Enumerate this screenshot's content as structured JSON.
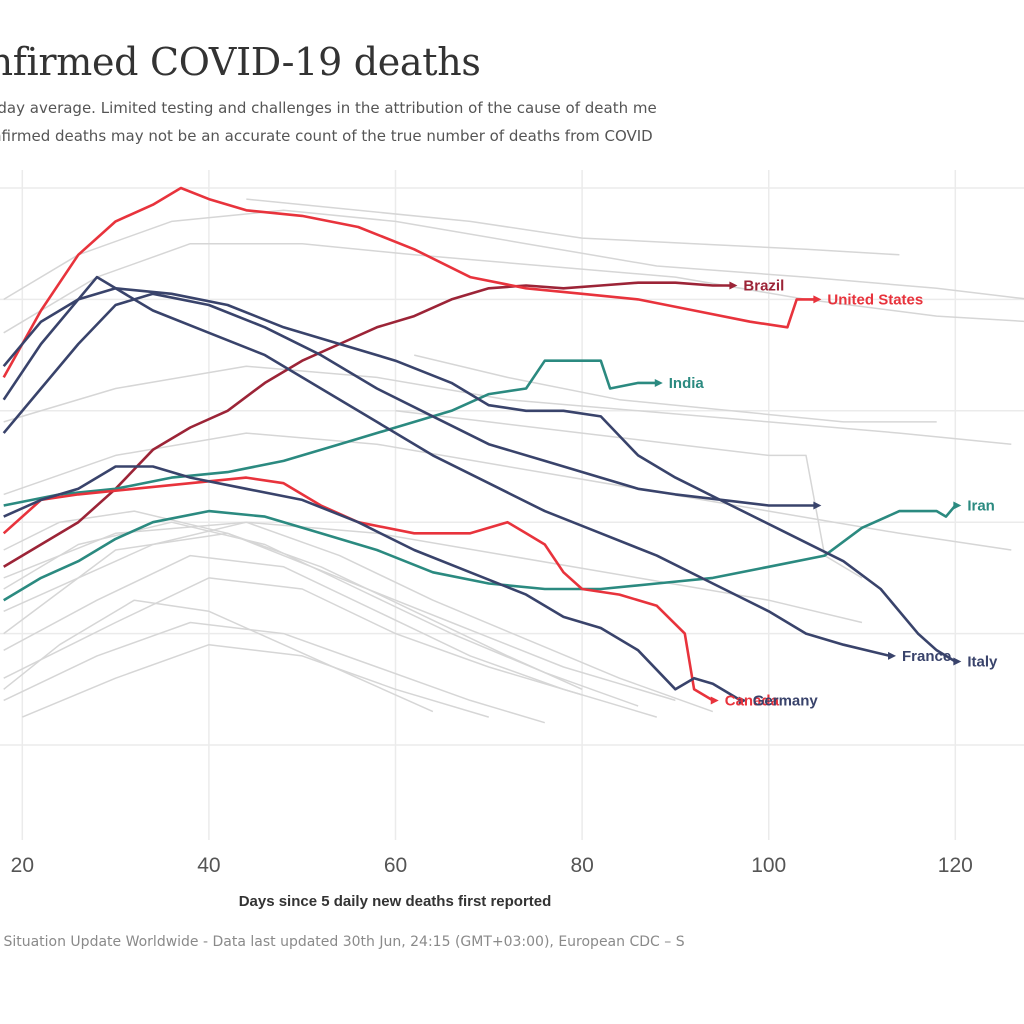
{
  "header": {
    "title": "onfirmed COVID-19 deaths",
    "subtitle_line1": "-day average. Limited testing and challenges in the attribution of the cause of death me",
    "subtitle_line2": "nfirmed deaths may not be an accurate count of the true number of deaths from COVID"
  },
  "footer": {
    "source": "– Situation Update Worldwide - Data last updated 30th Jun, 24:15 (GMT+03:00), European CDC – S"
  },
  "colors": {
    "red": "#e8333c",
    "darkred": "#9c2437",
    "navy": "#39436b",
    "teal": "#2b8a80",
    "background_line": "#d6d6d6",
    "grid": "#ebebeb"
  },
  "chart_data": {
    "type": "line",
    "title": "onfirmed COVID-19 deaths",
    "xlabel": "Days since 5 daily new deaths first reported",
    "ylabel": "",
    "xlim": [
      18,
      129
    ],
    "ylim": [
      0,
      100
    ],
    "x_ticks": [
      "20",
      "40",
      "60",
      "80",
      "100",
      "120"
    ],
    "grid": true,
    "legend": "direct labels at line ends",
    "series": [
      {
        "name": "Brazil",
        "color": "#9c2437",
        "points": [
          [
            18,
            32
          ],
          [
            22,
            36
          ],
          [
            26,
            40
          ],
          [
            30,
            46
          ],
          [
            34,
            53
          ],
          [
            38,
            57
          ],
          [
            42,
            60
          ],
          [
            46,
            65
          ],
          [
            50,
            69
          ],
          [
            54,
            72
          ],
          [
            58,
            75
          ],
          [
            62,
            77
          ],
          [
            66,
            80
          ],
          [
            70,
            82
          ],
          [
            74,
            82.5
          ],
          [
            78,
            82
          ],
          [
            82,
            82.5
          ],
          [
            86,
            83
          ],
          [
            90,
            83
          ],
          [
            94,
            82.5
          ],
          [
            96,
            82.5
          ]
        ]
      },
      {
        "name": "United States",
        "color": "#e8333c",
        "points": [
          [
            18,
            66
          ],
          [
            22,
            78
          ],
          [
            26,
            88
          ],
          [
            30,
            94
          ],
          [
            34,
            97
          ],
          [
            37,
            100
          ],
          [
            40,
            98
          ],
          [
            44,
            96
          ],
          [
            50,
            95
          ],
          [
            56,
            93
          ],
          [
            62,
            89
          ],
          [
            68,
            84
          ],
          [
            74,
            82
          ],
          [
            80,
            81
          ],
          [
            86,
            80
          ],
          [
            92,
            78
          ],
          [
            98,
            76
          ],
          [
            102,
            75
          ],
          [
            103,
            80
          ],
          [
            105,
            80
          ]
        ]
      },
      {
        "name": "India",
        "color": "#2b8a80",
        "points": [
          [
            18,
            43
          ],
          [
            24,
            45
          ],
          [
            30,
            46
          ],
          [
            36,
            48
          ],
          [
            42,
            49
          ],
          [
            48,
            51
          ],
          [
            54,
            54
          ],
          [
            60,
            57
          ],
          [
            66,
            60
          ],
          [
            70,
            63
          ],
          [
            74,
            64
          ],
          [
            76,
            69
          ],
          [
            78,
            69
          ],
          [
            80,
            69
          ],
          [
            82,
            69
          ],
          [
            83,
            64
          ],
          [
            86,
            65
          ],
          [
            88,
            65
          ]
        ]
      },
      {
        "name": "Iran",
        "color": "#2b8a80",
        "points": [
          [
            18,
            26
          ],
          [
            22,
            30
          ],
          [
            26,
            33
          ],
          [
            30,
            37
          ],
          [
            34,
            40
          ],
          [
            40,
            42
          ],
          [
            46,
            41
          ],
          [
            52,
            38
          ],
          [
            58,
            35
          ],
          [
            64,
            31
          ],
          [
            70,
            29
          ],
          [
            76,
            28
          ],
          [
            82,
            28
          ],
          [
            88,
            29
          ],
          [
            94,
            30
          ],
          [
            100,
            32
          ],
          [
            106,
            34
          ],
          [
            110,
            39
          ],
          [
            114,
            42
          ],
          [
            118,
            42
          ],
          [
            119,
            41
          ],
          [
            120,
            43
          ]
        ]
      },
      {
        "name": "Canada",
        "color": "#e8333c",
        "points": [
          [
            18,
            38
          ],
          [
            22,
            44
          ],
          [
            26,
            45
          ],
          [
            32,
            46
          ],
          [
            38,
            47
          ],
          [
            44,
            48
          ],
          [
            48,
            47
          ],
          [
            52,
            43
          ],
          [
            56,
            40
          ],
          [
            62,
            38
          ],
          [
            68,
            38
          ],
          [
            72,
            40
          ],
          [
            74,
            38
          ],
          [
            76,
            36
          ],
          [
            78,
            31
          ],
          [
            80,
            28
          ],
          [
            84,
            27
          ],
          [
            88,
            25
          ],
          [
            91,
            20
          ],
          [
            92,
            10
          ],
          [
            94,
            8
          ]
        ]
      },
      {
        "name": "Germany",
        "color": "#39436b",
        "points": [
          [
            18,
            41
          ],
          [
            22,
            44
          ],
          [
            26,
            46
          ],
          [
            30,
            50
          ],
          [
            34,
            50
          ],
          [
            38,
            48
          ],
          [
            44,
            46
          ],
          [
            50,
            44
          ],
          [
            56,
            40
          ],
          [
            62,
            35
          ],
          [
            68,
            31
          ],
          [
            74,
            27
          ],
          [
            78,
            23
          ],
          [
            82,
            21
          ],
          [
            86,
            17
          ],
          [
            90,
            10
          ],
          [
            92,
            12
          ],
          [
            94,
            11
          ],
          [
            97,
            8
          ]
        ]
      },
      {
        "name": "France",
        "color": "#39436b",
        "points": [
          [
            18,
            62
          ],
          [
            22,
            72
          ],
          [
            26,
            80
          ],
          [
            28,
            84
          ],
          [
            30,
            82
          ],
          [
            34,
            78
          ],
          [
            40,
            74
          ],
          [
            46,
            70
          ],
          [
            52,
            64
          ],
          [
            58,
            58
          ],
          [
            64,
            52
          ],
          [
            70,
            47
          ],
          [
            76,
            42
          ],
          [
            82,
            38
          ],
          [
            88,
            34
          ],
          [
            94,
            29
          ],
          [
            100,
            24
          ],
          [
            104,
            20
          ],
          [
            108,
            18
          ],
          [
            113,
            16
          ]
        ]
      },
      {
        "name": "Italy",
        "color": "#39436b",
        "points": [
          [
            18,
            68
          ],
          [
            22,
            76
          ],
          [
            26,
            80
          ],
          [
            30,
            82
          ],
          [
            36,
            81
          ],
          [
            42,
            79
          ],
          [
            48,
            75
          ],
          [
            54,
            72
          ],
          [
            60,
            69
          ],
          [
            66,
            65
          ],
          [
            70,
            61
          ],
          [
            74,
            60
          ],
          [
            78,
            60
          ],
          [
            82,
            59
          ],
          [
            86,
            52
          ],
          [
            90,
            48
          ],
          [
            96,
            43
          ],
          [
            102,
            38
          ],
          [
            108,
            33
          ],
          [
            112,
            28
          ],
          [
            116,
            20
          ],
          [
            118,
            17
          ],
          [
            120,
            15
          ]
        ]
      },
      {
        "name": "",
        "color": "#39436b",
        "points": [
          [
            18,
            56
          ],
          [
            22,
            64
          ],
          [
            26,
            72
          ],
          [
            30,
            79
          ],
          [
            34,
            81
          ],
          [
            40,
            79
          ],
          [
            46,
            75
          ],
          [
            52,
            70
          ],
          [
            58,
            64
          ],
          [
            64,
            59
          ],
          [
            70,
            54
          ],
          [
            76,
            51
          ],
          [
            82,
            48
          ],
          [
            86,
            46
          ],
          [
            90,
            45
          ],
          [
            95,
            44
          ],
          [
            100,
            43
          ],
          [
            105,
            43
          ]
        ]
      }
    ]
  },
  "background_lines": [
    [
      [
        18,
        20
      ],
      [
        30,
        35
      ],
      [
        42,
        38
      ],
      [
        54,
        30
      ],
      [
        66,
        22
      ],
      [
        78,
        14
      ],
      [
        90,
        8
      ]
    ],
    [
      [
        18,
        12
      ],
      [
        30,
        22
      ],
      [
        40,
        30
      ],
      [
        50,
        28
      ],
      [
        60,
        20
      ],
      [
        70,
        14
      ],
      [
        80,
        9
      ]
    ],
    [
      [
        18,
        28
      ],
      [
        26,
        36
      ],
      [
        36,
        40
      ],
      [
        46,
        36
      ],
      [
        56,
        28
      ],
      [
        66,
        20
      ],
      [
        76,
        13
      ],
      [
        86,
        7
      ]
    ],
    [
      [
        18,
        8
      ],
      [
        28,
        16
      ],
      [
        38,
        22
      ],
      [
        48,
        20
      ],
      [
        58,
        14
      ],
      [
        68,
        8
      ],
      [
        76,
        4
      ]
    ],
    [
      [
        18,
        35
      ],
      [
        24,
        40
      ],
      [
        32,
        42
      ],
      [
        42,
        38
      ],
      [
        52,
        32
      ],
      [
        62,
        24
      ],
      [
        72,
        16
      ],
      [
        80,
        10
      ]
    ],
    [
      [
        20,
        5
      ],
      [
        30,
        12
      ],
      [
        40,
        18
      ],
      [
        50,
        16
      ],
      [
        60,
        10
      ],
      [
        70,
        5
      ]
    ],
    [
      [
        18,
        17
      ],
      [
        28,
        26
      ],
      [
        38,
        34
      ],
      [
        48,
        32
      ],
      [
        58,
        24
      ],
      [
        68,
        16
      ],
      [
        78,
        10
      ],
      [
        88,
        5
      ]
    ],
    [
      [
        18,
        24
      ],
      [
        26,
        30
      ],
      [
        34,
        36
      ],
      [
        44,
        40
      ],
      [
        54,
        34
      ],
      [
        64,
        26
      ],
      [
        74,
        19
      ],
      [
        84,
        12
      ],
      [
        94,
        6
      ]
    ],
    [
      [
        18,
        10
      ],
      [
        24,
        18
      ],
      [
        32,
        26
      ],
      [
        40,
        24
      ],
      [
        48,
        18
      ],
      [
        56,
        12
      ],
      [
        64,
        6
      ]
    ],
    [
      [
        18,
        30
      ],
      [
        30,
        38
      ],
      [
        44,
        40
      ],
      [
        58,
        38
      ],
      [
        72,
        34
      ],
      [
        86,
        30
      ],
      [
        100,
        26
      ],
      [
        110,
        22
      ]
    ],
    [
      [
        18,
        45
      ],
      [
        30,
        52
      ],
      [
        44,
        56
      ],
      [
        58,
        54
      ],
      [
        72,
        50
      ],
      [
        86,
        46
      ],
      [
        100,
        42
      ],
      [
        114,
        38
      ],
      [
        126,
        35
      ]
    ],
    [
      [
        18,
        58
      ],
      [
        30,
        64
      ],
      [
        44,
        68
      ],
      [
        58,
        66
      ],
      [
        72,
        62
      ],
      [
        86,
        60
      ],
      [
        100,
        58
      ],
      [
        114,
        56
      ],
      [
        126,
        54
      ]
    ],
    [
      [
        18,
        74
      ],
      [
        28,
        84
      ],
      [
        38,
        90
      ],
      [
        50,
        90
      ],
      [
        62,
        88
      ],
      [
        76,
        86
      ],
      [
        90,
        84
      ],
      [
        104,
        80
      ],
      [
        118,
        77
      ],
      [
        128,
        76
      ]
    ],
    [
      [
        18,
        80
      ],
      [
        26,
        88
      ],
      [
        36,
        94
      ],
      [
        48,
        96
      ],
      [
        60,
        94
      ],
      [
        74,
        90
      ],
      [
        88,
        86
      ],
      [
        104,
        84
      ],
      [
        118,
        82
      ],
      [
        128,
        80
      ]
    ],
    [
      [
        44,
        98
      ],
      [
        56,
        96
      ],
      [
        68,
        94
      ],
      [
        80,
        91
      ],
      [
        92,
        90
      ],
      [
        104,
        89
      ],
      [
        114,
        88
      ]
    ],
    [
      [
        60,
        60
      ],
      [
        70,
        58
      ],
      [
        80,
        56
      ],
      [
        90,
        54
      ],
      [
        100,
        52
      ],
      [
        104,
        52
      ],
      [
        106,
        34
      ],
      [
        110,
        30
      ]
    ],
    [
      [
        62,
        70
      ],
      [
        72,
        66
      ],
      [
        84,
        62
      ],
      [
        96,
        60
      ],
      [
        108,
        58
      ],
      [
        118,
        58
      ]
    ]
  ]
}
